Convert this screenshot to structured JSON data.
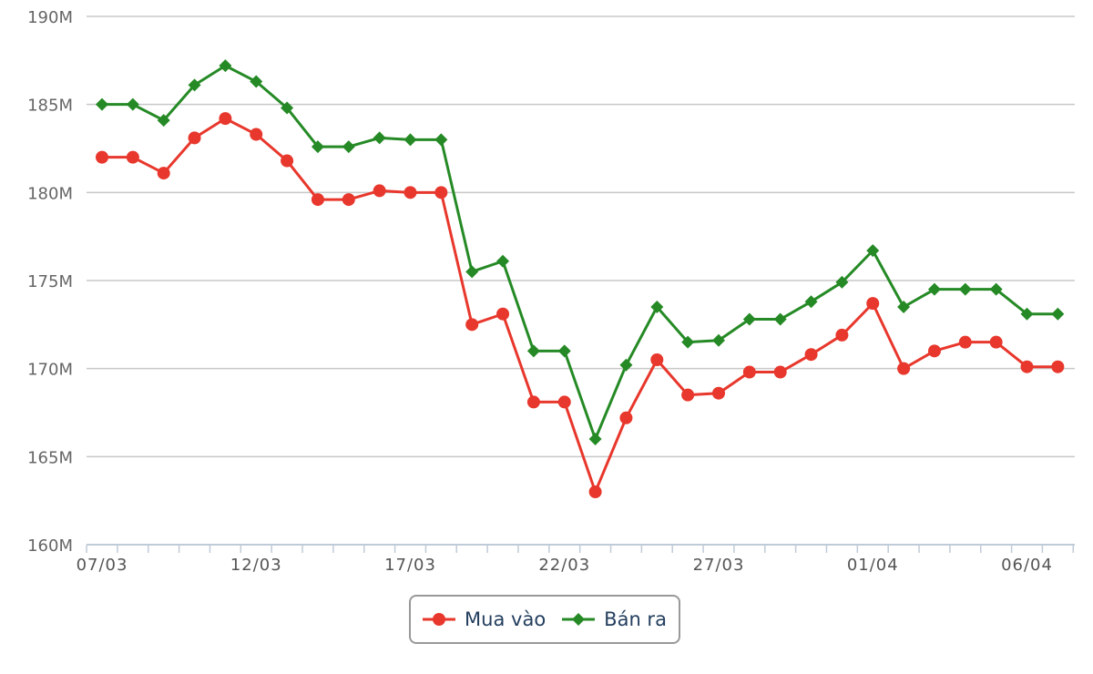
{
  "chart_data": {
    "type": "line",
    "title": "",
    "xlabel": "",
    "ylabel": "",
    "ylim": [
      160,
      190
    ],
    "y_unit_suffix": "M",
    "y_ticks": [
      "160M",
      "165M",
      "170M",
      "175M",
      "180M",
      "185M",
      "190M"
    ],
    "y_tick_values": [
      160,
      165,
      170,
      175,
      180,
      185,
      190
    ],
    "x_tick_labels": [
      "07/03",
      "12/03",
      "17/03",
      "22/03",
      "27/03",
      "01/04",
      "06/04"
    ],
    "x_tick_indices": [
      0,
      5,
      10,
      15,
      20,
      25,
      30
    ],
    "grid": true,
    "legend_position": "bottom",
    "x": [
      "07/03",
      "08/03",
      "09/03",
      "10/03",
      "11/03",
      "12/03",
      "13/03",
      "14/03",
      "15/03",
      "16/03",
      "17/03",
      "18/03",
      "19/03",
      "20/03",
      "21/03",
      "22/03",
      "23/03",
      "24/03",
      "25/03",
      "26/03",
      "27/03",
      "28/03",
      "29/03",
      "30/03",
      "31/03",
      "01/04",
      "02/04",
      "03/04",
      "04/04",
      "05/04",
      "06/04",
      "07/04"
    ],
    "series": [
      {
        "name": "Mua vào",
        "color": "#e8372c",
        "marker": "circle",
        "values": [
          182.0,
          182.0,
          181.1,
          183.1,
          184.2,
          183.3,
          181.8,
          179.6,
          179.6,
          180.1,
          180.0,
          180.0,
          172.5,
          173.1,
          168.1,
          168.1,
          163.0,
          167.2,
          170.5,
          168.5,
          168.6,
          169.8,
          169.8,
          170.8,
          171.9,
          173.7,
          170.0,
          171.0,
          171.5,
          171.5,
          170.1,
          170.1
        ]
      },
      {
        "name": "Bán ra",
        "color": "#258a25",
        "marker": "diamond",
        "values": [
          185.0,
          185.0,
          184.1,
          186.1,
          187.2,
          186.3,
          184.8,
          182.6,
          182.6,
          183.1,
          183.0,
          183.0,
          175.5,
          176.1,
          171.0,
          171.0,
          166.0,
          170.2,
          173.5,
          171.5,
          171.6,
          172.8,
          172.8,
          173.8,
          174.9,
          176.7,
          173.5,
          174.5,
          174.5,
          174.5,
          173.1,
          173.1
        ]
      }
    ]
  }
}
